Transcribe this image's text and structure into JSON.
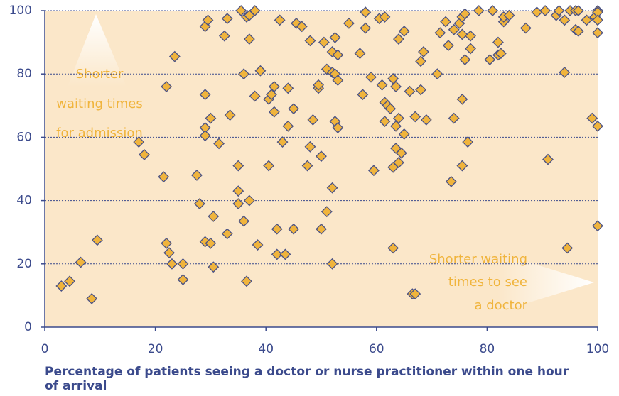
{
  "chart_data": {
    "type": "scatter",
    "xlabel": [
      "Percentage of patients seeing a doctor or nurse practitioner within one hour",
      "of arrival"
    ],
    "annotations": [
      {
        "lines": [
          "Shorter",
          "waiting times",
          "for admission"
        ]
      },
      {
        "lines": [
          "Shorter waiting",
          "times to see",
          "a doctor"
        ]
      }
    ],
    "xlim": [
      0,
      100
    ],
    "xticks": [
      0,
      20,
      40,
      60,
      80,
      100
    ],
    "ylim": [
      0,
      100
    ],
    "yticks": [
      0,
      20,
      40,
      60,
      80,
      100
    ],
    "grid": true,
    "color": "#f0b43c",
    "edgecolor": "#4a5285",
    "background": "#fbe7c9",
    "x": [
      3,
      4.5,
      6.5,
      8.5,
      9.5,
      17,
      18,
      21.5,
      22,
      22,
      22.5,
      23,
      23.5,
      25,
      25,
      27.5,
      28,
      29,
      29,
      29.5,
      29,
      29,
      29,
      30,
      30,
      30.5,
      30.5,
      31.5,
      32.5,
      33,
      33,
      33.5,
      35,
      35,
      35,
      35.5,
      36,
      36,
      36.5,
      36.5,
      37,
      37,
      37,
      38,
      38,
      38.5,
      39,
      40.5,
      41,
      40.5,
      41.5,
      41.5,
      42,
      42,
      42.5,
      43,
      43.5,
      44,
      44,
      45,
      45,
      45.5,
      46.5,
      47.5,
      48,
      48.5,
      48,
      49.5,
      49.5,
      50,
      50,
      50.5,
      51,
      51,
      52,
      52,
      52,
      52.5,
      52,
      52.5,
      52.5,
      53,
      53,
      53,
      55,
      57,
      57.5,
      58,
      58,
      59,
      59.5,
      60.5,
      61,
      61.5,
      61.5,
      61.5,
      62,
      62.5,
      63,
      63,
      63,
      63.5,
      63.5,
      63.5,
      64,
      64,
      64,
      64.5,
      65,
      65,
      66,
      66.5,
      67,
      67,
      68,
      68,
      68.5,
      69,
      71,
      71.5,
      72.5,
      73,
      73.5,
      74,
      74,
      75,
      75.5,
      75.5,
      75.5,
      75.5,
      76,
      76,
      76.5,
      77,
      77,
      78.5,
      80.5,
      81,
      82,
      82,
      82.5,
      83,
      83,
      84,
      87,
      89,
      90.5,
      91,
      92.5,
      93,
      94,
      94,
      94.5,
      95,
      96,
      96,
      96.5,
      96.5,
      98,
      99,
      99.5,
      100,
      100,
      100,
      100,
      100,
      100
    ],
    "values": [
      13,
      14.5,
      20.5,
      9,
      27.5,
      58.5,
      54.5,
      47.5,
      76,
      26.5,
      23.5,
      20,
      85.5,
      20,
      15,
      48,
      39,
      27,
      95,
      97,
      73.5,
      63,
      60.5,
      66,
      26.5,
      19,
      35,
      58,
      92,
      97.5,
      29.5,
      67,
      51,
      43,
      39,
      100,
      80,
      33.5,
      14.5,
      98,
      98.5,
      91,
      40,
      100,
      73,
      26,
      81,
      72,
      73.5,
      51,
      68,
      76,
      31,
      23,
      97,
      58.5,
      23,
      75.5,
      63.5,
      69,
      31,
      96,
      95,
      51,
      57,
      65.5,
      90.5,
      75.5,
      76.5,
      54,
      31,
      90,
      36.5,
      81.5,
      44,
      20,
      80.5,
      91.5,
      87,
      80,
      65,
      63,
      78,
      86,
      96,
      86.5,
      73.5,
      99.5,
      94.5,
      79,
      49.5,
      97.5,
      76.5,
      98,
      71,
      65,
      70,
      69,
      25,
      50.5,
      78.5,
      76,
      63.5,
      56.5,
      91,
      52,
      66,
      55,
      93.5,
      61,
      74.5,
      10.5,
      10.5,
      66.5,
      75,
      84,
      87,
      65.5,
      80,
      93,
      96.5,
      89,
      46,
      94,
      66,
      96,
      51,
      92.5,
      72,
      98,
      84.5,
      99,
      58.5,
      92,
      88,
      100,
      84.5,
      100,
      86,
      90,
      86.5,
      96.5,
      98,
      98.5,
      94.5,
      99.5,
      100,
      53,
      98.5,
      100,
      80.5,
      97,
      25,
      100,
      94,
      100,
      93.5,
      100,
      97,
      66,
      98,
      100,
      99.5,
      97,
      93,
      63.5,
      32
    ]
  }
}
